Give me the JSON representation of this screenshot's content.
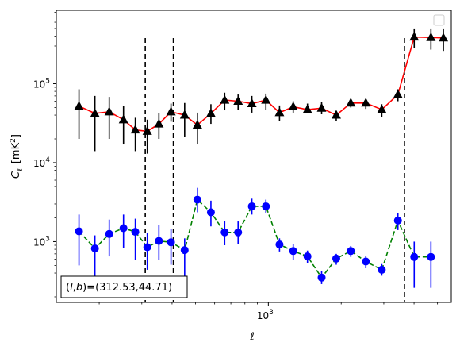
{
  "chart_data": {
    "type": "scatter",
    "title": "",
    "xlabel": "ℓ",
    "ylabel_main": "C",
    "ylabel_sub": "ℓ",
    "ylabel_unit_open": "[mK",
    "ylabel_unit_exp": "2",
    "ylabel_unit_close": "]",
    "x_scale": "log",
    "y_scale": "log",
    "xlim": [
      133,
      5700
    ],
    "ylim": [
      170,
      850000
    ],
    "x_ticks": [
      {
        "value": 1000,
        "base": "10",
        "exp": "3"
      }
    ],
    "y_ticks": [
      {
        "value": 1000,
        "base": "10",
        "exp": "3"
      },
      {
        "value": 10000,
        "base": "10",
        "exp": "4"
      },
      {
        "value": 100000,
        "base": "10",
        "exp": "5"
      }
    ],
    "vlines": [
      310,
      405,
      3650
    ],
    "legend_placement": "top-right",
    "annotation": {
      "label_parts": [
        "(",
        "l",
        ",",
        "b",
        ")=(312.53,44.71)"
      ],
      "placement": "bottom-left"
    },
    "series": [
      {
        "color": "#ff0000",
        "marker_color": "#000000",
        "marker": "triangle",
        "linestyle": "solid",
        "x": [
          165,
          192,
          220,
          252,
          282,
          316,
          353,
          396,
          451,
          509,
          579,
          660,
          750,
          855,
          977,
          1112,
          1267,
          1451,
          1660,
          1908,
          2191,
          2528,
          2943,
          3431,
          4006,
          4697,
          5287
        ],
        "y": [
          52000,
          42000,
          44000,
          35000,
          26000,
          25000,
          31000,
          44000,
          40000,
          30000,
          42000,
          62000,
          60000,
          56000,
          62000,
          43000,
          51000,
          47000,
          49000,
          40000,
          57000,
          57000,
          47000,
          73000,
          390000,
          385000,
          380000
        ],
        "yerr_low": [
          20000,
          14000,
          20000,
          17000,
          14000,
          13000,
          20000,
          33000,
          21000,
          17000,
          31000,
          46000,
          47000,
          43000,
          47000,
          34000,
          43000,
          42000,
          41000,
          34000,
          50000,
          48000,
          38000,
          60000,
          280000,
          270000,
          260000
        ],
        "yerr_high": [
          85000,
          70000,
          68000,
          52000,
          37000,
          35000,
          42000,
          56000,
          57000,
          43000,
          55000,
          77000,
          73000,
          70000,
          75000,
          53000,
          60000,
          56000,
          58000,
          45000,
          63000,
          61000,
          55000,
          85000,
          500000,
          500000,
          500000
        ]
      },
      {
        "color": "#008000",
        "marker_color": "#0000ff",
        "marker": "circle",
        "linestyle": "dashed",
        "x": [
          165,
          192,
          220,
          252,
          282,
          316,
          353,
          396,
          451,
          509,
          579,
          660,
          750,
          855,
          977,
          1112,
          1267,
          1451,
          1660,
          1908,
          2191,
          2528,
          2943,
          3431,
          4006,
          4697
        ],
        "y": [
          1350,
          820,
          1250,
          1480,
          1330,
          850,
          1020,
          980,
          780,
          3400,
          2350,
          1310,
          1310,
          2800,
          2800,
          920,
          760,
          650,
          350,
          610,
          760,
          560,
          440,
          1850,
          640,
          640
        ],
        "yerr_low": [
          500,
          340,
          650,
          820,
          580,
          440,
          590,
          510,
          310,
          2350,
          1560,
          900,
          930,
          2200,
          2300,
          750,
          580,
          530,
          290,
          510,
          640,
          460,
          370,
          1400,
          260,
          260
        ],
        "yerr_high": [
          2200,
          1200,
          1900,
          2200,
          1950,
          1300,
          1620,
          1450,
          1100,
          4800,
          3300,
          1820,
          1800,
          3500,
          3400,
          1100,
          940,
          770,
          420,
          700,
          880,
          650,
          520,
          2300,
          1000,
          1000
        ]
      }
    ]
  }
}
